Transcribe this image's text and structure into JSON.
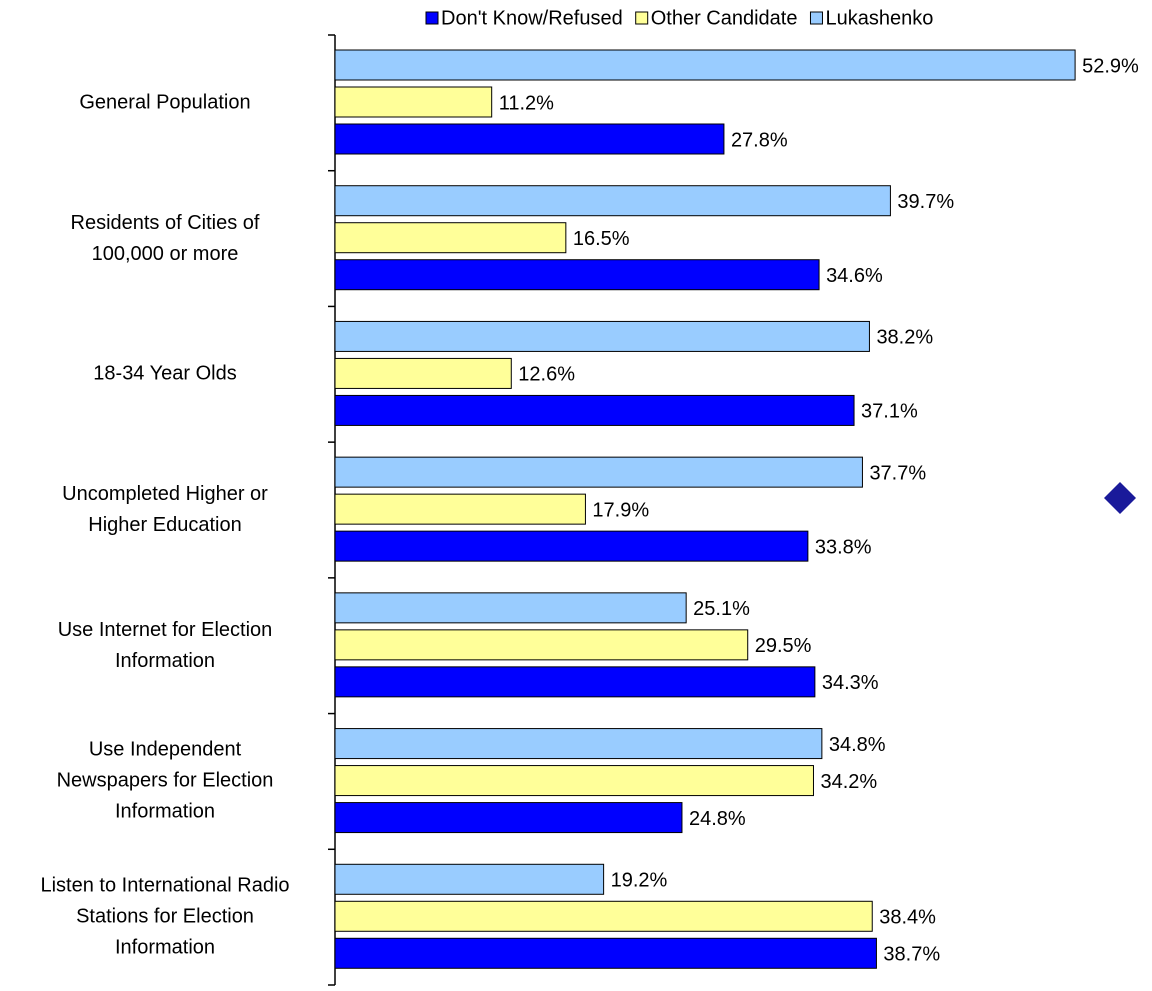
{
  "chart_data": {
    "type": "bar",
    "orientation": "horizontal",
    "categories": [
      "General Population",
      "Residents of Cities of\n100,000 or more",
      "18-34 Year Olds",
      "Uncompleted Higher or\nHigher Education",
      "Use Internet for Election\nInformation",
      "Use Independent\nNewspapers for Election\nInformation",
      "Listen to International Radio\nStations for Election\nInformation"
    ],
    "series": [
      {
        "name": "Don't Know/Refused",
        "color": "#0000ff",
        "values": [
          27.8,
          34.6,
          37.1,
          33.8,
          34.3,
          24.8,
          38.7
        ],
        "value_labels": [
          "27.8%",
          "34.6%",
          "37.1%",
          "33.8%",
          "34.3%",
          "24.8%",
          "38.7%"
        ]
      },
      {
        "name": "Other Candidate",
        "color": "#ffff99",
        "values": [
          11.2,
          16.5,
          12.6,
          17.9,
          29.5,
          34.2,
          38.4
        ],
        "value_labels": [
          "11.2%",
          "16.5%",
          "12.6%",
          "17.9%",
          "29.5%",
          "34.2%",
          "38.4%"
        ]
      },
      {
        "name": "Lukashenko",
        "color": "#99ccff",
        "values": [
          52.9,
          39.7,
          38.2,
          37.7,
          25.1,
          34.8,
          19.2
        ],
        "value_labels": [
          "52.9%",
          "39.7%",
          "38.2%",
          "37.7%",
          "25.1%",
          "34.8%",
          "19.2%"
        ]
      }
    ],
    "xlim": [
      0,
      53
    ],
    "legend": "top"
  }
}
